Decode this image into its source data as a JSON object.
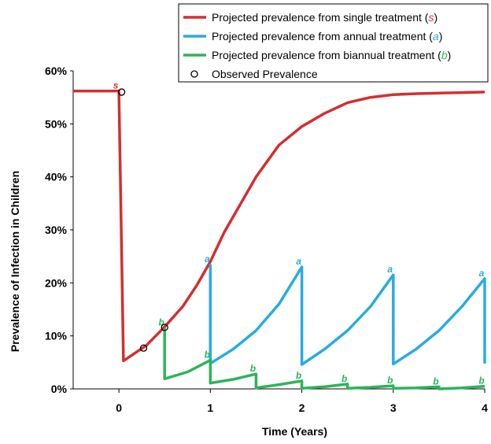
{
  "chart_data": {
    "type": "line",
    "title": "",
    "xlabel": "Time (Years)",
    "ylabel": "Prevalence of Infection in Children",
    "xlim": [
      -0.5,
      4
    ],
    "ylim": [
      0,
      60
    ],
    "x_ticks": [
      0,
      1,
      2,
      3,
      4
    ],
    "x_tick_labels": [
      "0",
      "1",
      "2",
      "3",
      "4"
    ],
    "y_ticks": [
      0,
      10,
      20,
      30,
      40,
      50,
      60
    ],
    "y_tick_labels": [
      "0%",
      "10%",
      "20%",
      "30%",
      "40%",
      "50%",
      "60%"
    ],
    "grid": false,
    "legend_position": "top-right",
    "legend": [
      {
        "prefix": "Projected prevalence from single treatment (",
        "symbol": "s",
        "suffix": ")",
        "kind": "line",
        "color": "#d32f2f"
      },
      {
        "prefix": "Projected prevalence from annual treatment (",
        "symbol": "a",
        "suffix": ")",
        "kind": "line",
        "color": "#29abe2"
      },
      {
        "prefix": "Projected prevalence from biannual treatment (",
        "symbol": "b",
        "suffix": ")",
        "kind": "line",
        "color": "#2db45a"
      },
      {
        "prefix": "Observed Prevalence",
        "symbol": "",
        "suffix": "",
        "kind": "marker",
        "color": "#000000"
      }
    ],
    "series": [
      {
        "name": "Projected prevalence from single treatment (s)",
        "color": "#d32f2f",
        "x": [
          -0.5,
          0.0,
          0.0,
          0.05,
          0.3,
          0.5,
          0.7,
          0.85,
          1.0,
          1.15,
          1.3,
          1.5,
          1.75,
          2.0,
          2.25,
          2.5,
          2.75,
          3.0,
          3.25,
          3.5,
          3.75,
          4.0
        ],
        "y": [
          56.2,
          56.2,
          56.2,
          5.3,
          8.2,
          11.7,
          15.6,
          19.5,
          24.0,
          29.5,
          34.0,
          40.0,
          46.0,
          49.5,
          52.0,
          54.0,
          55.0,
          55.5,
          55.7,
          55.8,
          55.9,
          56.0
        ]
      },
      {
        "name": "Projected prevalence from annual treatment (a)",
        "color": "#29abe2",
        "x": [
          1.0,
          1.0,
          1.25,
          1.5,
          1.75,
          2.0,
          2.0,
          2.25,
          2.5,
          2.75,
          3.0,
          3.0,
          3.25,
          3.5,
          3.75,
          4.0,
          4.0
        ],
        "y": [
          23.5,
          4.8,
          7.5,
          11.0,
          16.0,
          23.0,
          4.6,
          7.5,
          11.0,
          15.5,
          21.5,
          4.7,
          7.5,
          11.0,
          15.5,
          20.8,
          4.8
        ]
      },
      {
        "name": "Projected prevalence from biannual treatment (b)",
        "color": "#2db45a",
        "x": [
          0.5,
          0.5,
          0.75,
          1.0,
          1.0,
          1.25,
          1.5,
          1.5,
          1.75,
          2.0,
          2.0,
          2.25,
          2.5,
          2.5,
          2.75,
          3.0,
          3.0,
          3.25,
          3.5,
          3.5,
          3.75,
          4.0
        ],
        "y": [
          11.5,
          1.9,
          3.2,
          5.4,
          1.1,
          1.8,
          2.8,
          0.2,
          0.8,
          1.5,
          0.1,
          0.4,
          0.9,
          0.1,
          0.3,
          0.6,
          0.1,
          0.2,
          0.4,
          0.0,
          0.2,
          0.5
        ]
      }
    ],
    "observed": {
      "name": "Observed Prevalence",
      "x": [
        0.03,
        0.27,
        0.5
      ],
      "y": [
        56.0,
        7.7,
        11.6
      ]
    },
    "annotations": [
      {
        "text": "s",
        "x": 0.0,
        "y": 56.2,
        "color": "#d32f2f"
      },
      {
        "text": "a",
        "x": 1.0,
        "y": 23.5,
        "color": "#29abe2"
      },
      {
        "text": "a",
        "x": 2.0,
        "y": 23.0,
        "color": "#29abe2"
      },
      {
        "text": "a",
        "x": 3.0,
        "y": 21.5,
        "color": "#29abe2"
      },
      {
        "text": "a",
        "x": 4.0,
        "y": 20.8,
        "color": "#29abe2"
      },
      {
        "text": "b",
        "x": 0.5,
        "y": 11.5,
        "color": "#2db45a"
      },
      {
        "text": "b",
        "x": 1.0,
        "y": 5.4,
        "color": "#2db45a"
      },
      {
        "text": "b",
        "x": 1.5,
        "y": 2.8,
        "color": "#2db45a"
      },
      {
        "text": "b",
        "x": 2.0,
        "y": 1.5,
        "color": "#2db45a"
      },
      {
        "text": "b",
        "x": 2.5,
        "y": 0.9,
        "color": "#2db45a"
      },
      {
        "text": "b",
        "x": 3.0,
        "y": 0.6,
        "color": "#2db45a"
      },
      {
        "text": "b",
        "x": 3.5,
        "y": 0.4,
        "color": "#2db45a"
      },
      {
        "text": "b",
        "x": 4.0,
        "y": 0.5,
        "color": "#2db45a"
      }
    ]
  }
}
